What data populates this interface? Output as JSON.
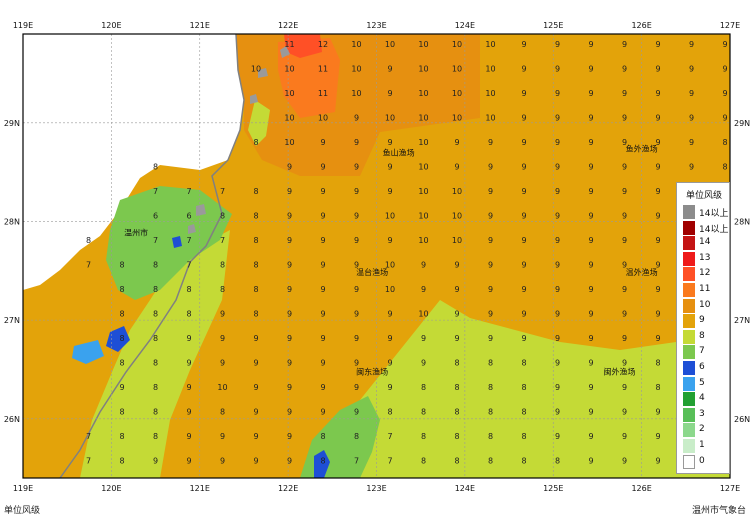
{
  "map": {
    "lon_ticks": [
      "119E",
      "120E",
      "121E",
      "122E",
      "123E",
      "124E",
      "125E",
      "126E",
      "127E"
    ],
    "lat_ticks": [
      "29N",
      "28N",
      "27N",
      "26N"
    ],
    "grid": true,
    "colors": {
      "sea9": "#E3A30A",
      "sea10": "#E69010",
      "sea11": "#FA7A1E",
      "sea12": "#FF5026",
      "val8": "#C4DA36",
      "val7": "#7CC84E",
      "land": "#ffffff",
      "coast": "#808080",
      "cell6": "#1E4FD6",
      "cell5": "#3AA2EE"
    }
  },
  "grid_values": [
    [
      "",
      "",
      "",
      "",
      "",
      "",
      "",
      "11",
      "12",
      "10",
      "10",
      "10",
      "10",
      "10",
      "9",
      "9",
      "9",
      "9",
      "9",
      "9",
      "9"
    ],
    [
      "",
      "",
      "",
      "",
      "",
      "",
      "10",
      "10",
      "11",
      "10",
      "9",
      "10",
      "10",
      "10",
      "9",
      "9",
      "9",
      "9",
      "9",
      "9",
      "9"
    ],
    [
      "",
      "",
      "",
      "",
      "",
      "",
      "",
      "10",
      "11",
      "10",
      "9",
      "10",
      "10",
      "10",
      "9",
      "9",
      "9",
      "9",
      "9",
      "9",
      "9"
    ],
    [
      "",
      "",
      "",
      "",
      "",
      "",
      "",
      "10",
      "10",
      "9",
      "10",
      "10",
      "10",
      "10",
      "9",
      "9",
      "9",
      "9",
      "9",
      "9",
      "9"
    ],
    [
      "",
      "",
      "",
      "",
      "",
      "",
      "8",
      "10",
      "9",
      "9",
      "9",
      "10",
      "9",
      "9",
      "9",
      "9",
      "9",
      "9",
      "9",
      "9",
      "8"
    ],
    [
      "",
      "",
      "",
      "8",
      "",
      "",
      "",
      "9",
      "9",
      "9",
      "9",
      "10",
      "9",
      "9",
      "9",
      "9",
      "9",
      "9",
      "9",
      "9",
      "8"
    ],
    [
      "",
      "",
      "",
      "7",
      "7",
      "7",
      "8",
      "9",
      "9",
      "9",
      "9",
      "10",
      "10",
      "9",
      "9",
      "9",
      "9",
      "9",
      "9",
      "9",
      ""
    ],
    [
      "",
      "",
      "",
      "6",
      "6",
      "8",
      "8",
      "9",
      "9",
      "9",
      "10",
      "10",
      "10",
      "9",
      "9",
      "9",
      "9",
      "9",
      "9",
      "9",
      ""
    ],
    [
      "",
      "8",
      "",
      "7",
      "7",
      "7",
      "8",
      "9",
      "9",
      "9",
      "9",
      "10",
      "10",
      "9",
      "9",
      "9",
      "9",
      "9",
      "9",
      "9",
      ""
    ],
    [
      "",
      "7",
      "8",
      "8",
      "7",
      "8",
      "8",
      "9",
      "9",
      "9",
      "10",
      "9",
      "9",
      "9",
      "9",
      "9",
      "9",
      "9",
      "9",
      "9",
      ""
    ],
    [
      "",
      "",
      "8",
      "8",
      "8",
      "8",
      "8",
      "9",
      "9",
      "9",
      "10",
      "9",
      "9",
      "9",
      "9",
      "9",
      "9",
      "9",
      "9",
      "8",
      ""
    ],
    [
      "",
      "",
      "8",
      "8",
      "8",
      "9",
      "8",
      "9",
      "9",
      "9",
      "9",
      "10",
      "9",
      "9",
      "9",
      "9",
      "9",
      "9",
      "9",
      "8",
      ""
    ],
    [
      "",
      "",
      "8",
      "8",
      "9",
      "9",
      "9",
      "9",
      "9",
      "9",
      "9",
      "9",
      "9",
      "9",
      "9",
      "9",
      "9",
      "9",
      "9",
      "8",
      ""
    ],
    [
      "",
      "",
      "8",
      "8",
      "9",
      "9",
      "9",
      "9",
      "9",
      "9",
      "9",
      "9",
      "8",
      "8",
      "8",
      "9",
      "9",
      "9",
      "8",
      "8",
      ""
    ],
    [
      "",
      "",
      "9",
      "8",
      "9",
      "10",
      "9",
      "9",
      "9",
      "9",
      "9",
      "8",
      "8",
      "8",
      "8",
      "9",
      "9",
      "9",
      "8",
      "8",
      ""
    ],
    [
      "",
      "",
      "8",
      "8",
      "9",
      "8",
      "9",
      "9",
      "9",
      "9",
      "8",
      "8",
      "8",
      "8",
      "8",
      "9",
      "9",
      "9",
      "9",
      "8",
      ""
    ],
    [
      "",
      "7",
      "8",
      "8",
      "9",
      "9",
      "9",
      "9",
      "8",
      "8",
      "7",
      "8",
      "8",
      "8",
      "8",
      "9",
      "9",
      "9",
      "9",
      "8",
      ""
    ],
    [
      "",
      "7",
      "8",
      "9",
      "9",
      "9",
      "9",
      "9",
      "8",
      "7",
      "7",
      "8",
      "8",
      "8",
      "8",
      "8",
      "9",
      "9",
      "9",
      "8",
      ""
    ],
    [
      "6",
      "8",
      "9",
      "9",
      "9",
      "9",
      "9",
      "7",
      "8",
      "7",
      "8",
      "8",
      "8",
      "8",
      "8",
      "8",
      "9",
      "9",
      "9",
      "8",
      ""
    ]
  ],
  "places": [
    {
      "name": "温州市",
      "lon": 120.28,
      "lat": 27.89
    },
    {
      "name": "鱼山渔场",
      "lon": 123.25,
      "lat": 28.7
    },
    {
      "name": "鱼外渔场",
      "lon": 126.0,
      "lat": 28.74
    },
    {
      "name": "温台渔场",
      "lon": 122.95,
      "lat": 27.49
    },
    {
      "name": "温外渔场",
      "lon": 126.0,
      "lat": 27.49
    },
    {
      "name": "闽东渔场",
      "lon": 122.95,
      "lat": 26.48
    },
    {
      "name": "闽外渔场",
      "lon": 125.75,
      "lat": 26.48
    }
  ],
  "legend": {
    "title": "单位风级",
    "items": [
      {
        "label": "14以上",
        "color": "#8C8C8C"
      },
      {
        "label": "14以上",
        "color": "#A00000"
      },
      {
        "label": "14",
        "color": "#C41414"
      },
      {
        "label": "13",
        "color": "#EE1A1A"
      },
      {
        "label": "12",
        "color": "#FF5026"
      },
      {
        "label": "11",
        "color": "#FA7A1E"
      },
      {
        "label": "10",
        "color": "#E69010"
      },
      {
        "label": "9",
        "color": "#E3A30A"
      },
      {
        "label": "8",
        "color": "#C4DA36"
      },
      {
        "label": "7",
        "color": "#7CC84E"
      },
      {
        "label": "6",
        "color": "#1E4FD6"
      },
      {
        "label": "5",
        "color": "#3AA2EE"
      },
      {
        "label": "4",
        "color": "#22A032"
      },
      {
        "label": "3",
        "color": "#58BF58"
      },
      {
        "label": "2",
        "color": "#8CD88C"
      },
      {
        "label": "1",
        "color": "#C9EDC9"
      },
      {
        "label": "0",
        "color": "#FFFFFF"
      }
    ]
  },
  "footer": {
    "left": "单位风级",
    "right": "温州市气象台"
  }
}
